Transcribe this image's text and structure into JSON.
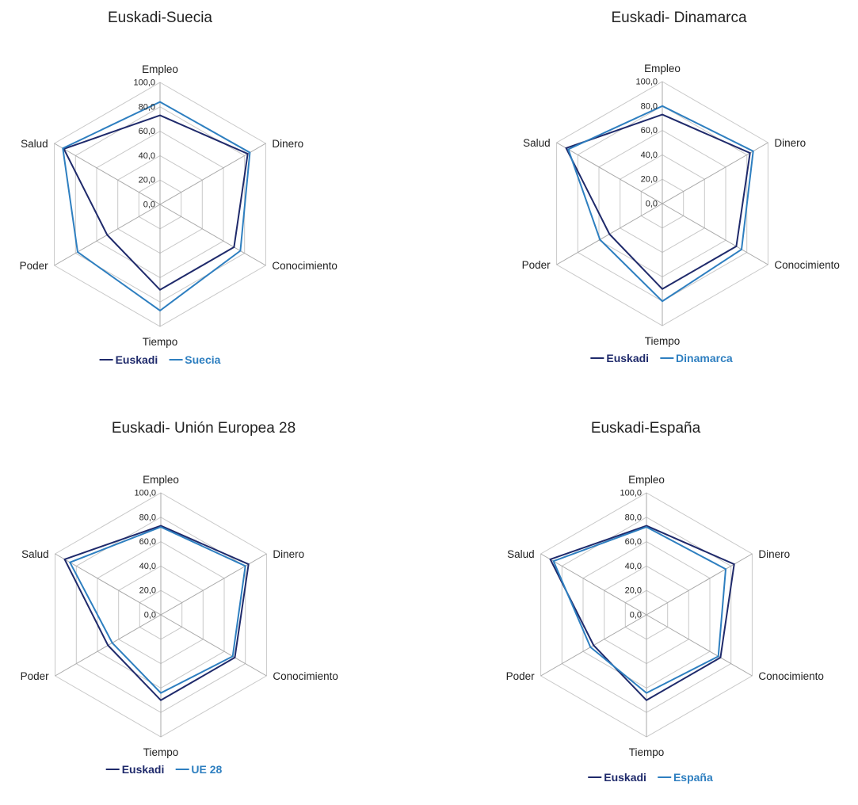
{
  "colors": {
    "euskadi": "#1f2a6b",
    "compare": "#2e7fc0",
    "grid": "#c8c8c8",
    "spoke": "#a8a8a8"
  },
  "chart_data": [
    {
      "type": "radar",
      "title": "Euskadi-Suecia",
      "axes": [
        "Empleo",
        "Dinero",
        "Conocimiento",
        "Tiempo",
        "Poder",
        "Salud"
      ],
      "ticks": [
        "0,0",
        "20,0",
        "40,0",
        "60,0",
        "80,0",
        "100,0"
      ],
      "range": [
        0,
        100
      ],
      "series": [
        {
          "name": "Euskadi",
          "color": "#1f2a6b",
          "values": [
            73,
            83,
            70,
            70,
            50,
            91
          ]
        },
        {
          "name": "Suecia",
          "color": "#2e7fc0",
          "values": [
            84,
            85,
            76,
            87,
            78,
            92
          ]
        }
      ]
    },
    {
      "type": "radar",
      "title": "Euskadi- Dinamarca",
      "axes": [
        "Empleo",
        "Dinero",
        "Conocimiento",
        "Tiempo",
        "Poder",
        "Salud"
      ],
      "ticks": [
        "0,0",
        "20,0",
        "40,0",
        "60,0",
        "80,0",
        "100,0"
      ],
      "range": [
        0,
        100
      ],
      "series": [
        {
          "name": "Euskadi",
          "color": "#1f2a6b",
          "values": [
            73,
            83,
            70,
            70,
            50,
            91
          ]
        },
        {
          "name": "Dinamarca",
          "color": "#2e7fc0",
          "values": [
            80,
            86,
            75,
            80,
            59,
            89
          ]
        }
      ]
    },
    {
      "type": "radar",
      "title": "Euskadi- Unión Europea 28",
      "axes": [
        "Empleo",
        "Dinero",
        "Conocimiento",
        "Tiempo",
        "Poder",
        "Salud"
      ],
      "ticks": [
        "0,0",
        "20,0",
        "40,0",
        "60,0",
        "80,0",
        "100,0"
      ],
      "range": [
        0,
        100
      ],
      "series": [
        {
          "name": "Euskadi",
          "color": "#1f2a6b",
          "values": [
            73,
            83,
            70,
            70,
            50,
            91
          ]
        },
        {
          "name": "UE 28",
          "color": "#2e7fc0",
          "values": [
            72,
            80,
            68,
            64,
            46,
            86
          ]
        }
      ]
    },
    {
      "type": "radar",
      "title": "Euskadi-España",
      "axes": [
        "Empleo",
        "Dinero",
        "Conocimiento",
        "Tiempo",
        "Poder",
        "Salud"
      ],
      "ticks": [
        "0,0",
        "20,0",
        "40,0",
        "60,0",
        "80,0",
        "100,0"
      ],
      "range": [
        0,
        100
      ],
      "series": [
        {
          "name": "Euskadi",
          "color": "#1f2a6b",
          "values": [
            73,
            83,
            70,
            70,
            50,
            91
          ]
        },
        {
          "name": "España",
          "color": "#2e7fc0",
          "values": [
            72,
            75,
            68,
            64,
            53,
            88
          ]
        }
      ]
    }
  ]
}
